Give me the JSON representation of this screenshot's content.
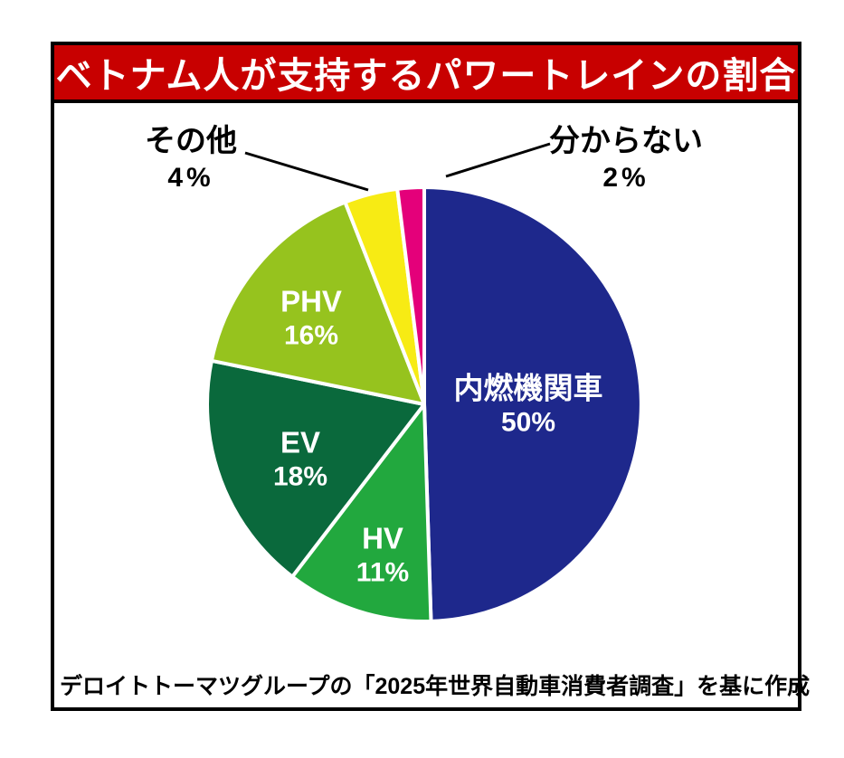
{
  "title": "ベトナム人が支持するパワートレインの割合",
  "footer": {
    "source_note": "デロイトトーマツグループの「2025年世界自動車消費者調査」を基に作成"
  },
  "colors": {
    "title_bg": "#c80000",
    "title_text": "#ffffff",
    "frame_border": "#000000",
    "slice_divider": "#ffffff",
    "leader_line": "#000000"
  },
  "chart_data": {
    "type": "pie",
    "title": "ベトナム人が支持するパワートレインの割合",
    "start_angle_deg": 0,
    "direction": "clockwise",
    "legend_position": "none",
    "slices": [
      {
        "key": "ice",
        "label": "内燃機関車",
        "value": 50,
        "display": "50%",
        "color": "#1e288c",
        "label_position": "inside"
      },
      {
        "key": "hv",
        "label": "HV",
        "value": 11,
        "display": "11%",
        "color": "#22a83e",
        "label_position": "inside"
      },
      {
        "key": "ev",
        "label": "EV",
        "value": 18,
        "display": "18%",
        "color": "#0a693c",
        "label_position": "inside"
      },
      {
        "key": "phv",
        "label": "PHV",
        "value": 16,
        "display": "16%",
        "color": "#96c31e",
        "label_position": "inside"
      },
      {
        "key": "other",
        "label": "その他",
        "value": 4,
        "display": "4%",
        "color": "#f7eb14",
        "label_position": "outside-left"
      },
      {
        "key": "unknown",
        "label": "分からない",
        "value": 2,
        "display": "2%",
        "color": "#e4007a",
        "label_position": "outside-right"
      }
    ],
    "source_note": "デロイトトーマツグループの「2025年世界自動車消費者調査」を基に作成"
  }
}
